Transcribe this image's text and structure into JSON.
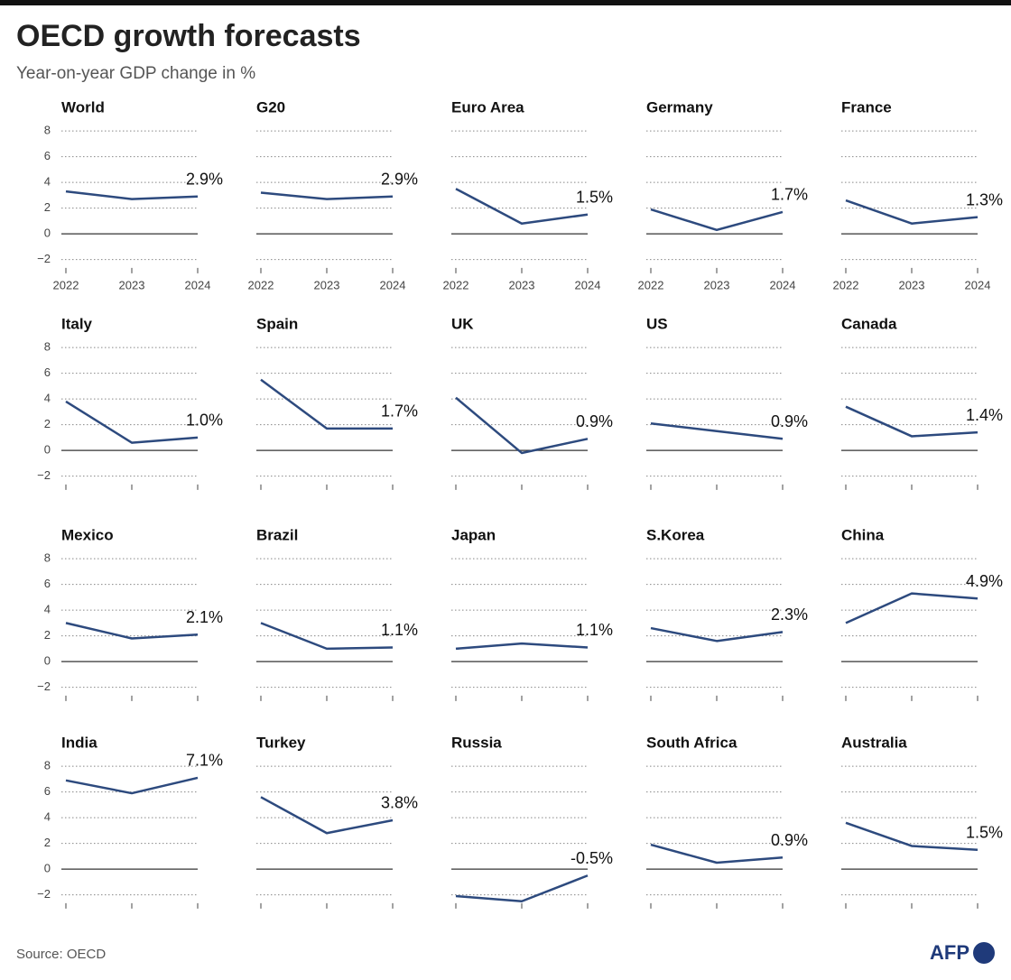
{
  "title": "OECD growth forecasts",
  "subtitle": "Year-on-year GDP change in %",
  "source": "Source: OECD",
  "logo": "AFP",
  "chart_data": [
    {
      "type": "line",
      "title": "World",
      "categories": [
        "2022",
        "2023",
        "2024"
      ],
      "values": [
        3.3,
        2.7,
        2.9
      ],
      "value_labels": [
        null,
        null,
        "2.9%"
      ],
      "color": "#2d4a7e",
      "ylim": [
        -3,
        8.5
      ],
      "yticks": [
        {
          "value": -2,
          "label": "−2"
        },
        0,
        2,
        4,
        6,
        8
      ],
      "ytick_labels": true
    },
    {
      "type": "line",
      "title": "G20",
      "categories": [
        "2022",
        "2023",
        "2024"
      ],
      "values": [
        3.2,
        2.7,
        2.9
      ],
      "value_labels": [
        null,
        null,
        "2.9%"
      ],
      "color": "#2d4a7e",
      "ylim": [
        -3,
        8.5
      ],
      "yticks": [
        -2,
        0,
        2,
        4,
        6,
        8
      ],
      "ytick_labels": false
    },
    {
      "type": "line",
      "title": "Euro Area",
      "categories": [
        "2022",
        "2023",
        "2024"
      ],
      "values": [
        3.5,
        0.8,
        1.5
      ],
      "value_labels": [
        null,
        null,
        "1.5%"
      ],
      "color": "#2d4a7e",
      "ylim": [
        -3,
        8.5
      ],
      "yticks": [
        -2,
        0,
        2,
        4,
        6,
        8
      ],
      "ytick_labels": false
    },
    {
      "type": "line",
      "title": "Germany",
      "categories": [
        "2022",
        "2023",
        "2024"
      ],
      "values": [
        1.9,
        0.3,
        1.7
      ],
      "value_labels": [
        null,
        null,
        "1.7%"
      ],
      "color": "#2d4a7e",
      "ylim": [
        -3,
        8.5
      ],
      "yticks": [
        -2,
        0,
        2,
        4,
        6,
        8
      ],
      "ytick_labels": false
    },
    {
      "type": "line",
      "title": "France",
      "categories": [
        "2022",
        "2023",
        "2024"
      ],
      "values": [
        2.6,
        0.8,
        1.3
      ],
      "value_labels": [
        null,
        null,
        "1.3%"
      ],
      "color": "#2d4a7e",
      "ylim": [
        -3,
        8.5
      ],
      "yticks": [
        -2,
        0,
        2,
        4,
        6,
        8
      ],
      "ytick_labels": false
    },
    {
      "type": "line",
      "title": "Italy",
      "categories": [
        null,
        null,
        null
      ],
      "values": [
        3.8,
        0.6,
        1.0
      ],
      "value_labels": [
        null,
        null,
        "1.0%"
      ],
      "color": "#2d4a7e",
      "ylim": [
        -3,
        8.5
      ],
      "yticks": [
        {
          "value": -2,
          "label": "−2"
        },
        0,
        2,
        4,
        6,
        8
      ],
      "ytick_labels": true
    },
    {
      "type": "line",
      "title": "Spain",
      "categories": [
        null,
        null,
        null
      ],
      "values": [
        5.5,
        1.7,
        1.7
      ],
      "value_labels": [
        null,
        null,
        "1.7%"
      ],
      "color": "#2d4a7e",
      "ylim": [
        -3,
        8.5
      ],
      "yticks": [
        -2,
        0,
        2,
        4,
        6,
        8
      ],
      "ytick_labels": false
    },
    {
      "type": "line",
      "title": "UK",
      "categories": [
        null,
        null,
        null
      ],
      "values": [
        4.1,
        -0.2,
        0.9
      ],
      "value_labels": [
        null,
        null,
        "0.9%"
      ],
      "color": "#2d4a7e",
      "ylim": [
        -3,
        8.5
      ],
      "yticks": [
        -2,
        0,
        2,
        4,
        6,
        8
      ],
      "ytick_labels": false
    },
    {
      "type": "line",
      "title": "US",
      "categories": [
        null,
        null,
        null
      ],
      "values": [
        2.1,
        1.5,
        0.9
      ],
      "value_labels": [
        null,
        null,
        "0.9%"
      ],
      "color": "#2d4a7e",
      "ylim": [
        -3,
        8.5
      ],
      "yticks": [
        -2,
        0,
        2,
        4,
        6,
        8
      ],
      "ytick_labels": false
    },
    {
      "type": "line",
      "title": "Canada",
      "categories": [
        null,
        null,
        null
      ],
      "values": [
        3.4,
        1.1,
        1.4
      ],
      "value_labels": [
        null,
        null,
        "1.4%"
      ],
      "color": "#2d4a7e",
      "ylim": [
        -3,
        8.5
      ],
      "yticks": [
        -2,
        0,
        2,
        4,
        6,
        8
      ],
      "ytick_labels": false
    },
    {
      "type": "line",
      "title": "Mexico",
      "categories": [
        null,
        null,
        null
      ],
      "values": [
        3.0,
        1.8,
        2.1
      ],
      "value_labels": [
        null,
        null,
        "2.1%"
      ],
      "color": "#2d4a7e",
      "ylim": [
        -3,
        8.5
      ],
      "yticks": [
        {
          "value": -2,
          "label": "−2"
        },
        0,
        2,
        4,
        6,
        8
      ],
      "ytick_labels": true
    },
    {
      "type": "line",
      "title": "Brazil",
      "categories": [
        null,
        null,
        null
      ],
      "values": [
        3.0,
        1.0,
        1.1
      ],
      "value_labels": [
        null,
        null,
        "1.1%"
      ],
      "color": "#2d4a7e",
      "ylim": [
        -3,
        8.5
      ],
      "yticks": [
        -2,
        0,
        2,
        4,
        6,
        8
      ],
      "ytick_labels": false
    },
    {
      "type": "line",
      "title": "Japan",
      "categories": [
        null,
        null,
        null
      ],
      "values": [
        1.0,
        1.4,
        1.1
      ],
      "value_labels": [
        null,
        null,
        "1.1%"
      ],
      "color": "#2d4a7e",
      "ylim": [
        -3,
        8.5
      ],
      "yticks": [
        -2,
        0,
        2,
        4,
        6,
        8
      ],
      "ytick_labels": false
    },
    {
      "type": "line",
      "title": "S.Korea",
      "categories": [
        null,
        null,
        null
      ],
      "values": [
        2.6,
        1.6,
        2.3
      ],
      "value_labels": [
        null,
        null,
        "2.3%"
      ],
      "color": "#2d4a7e",
      "ylim": [
        -3,
        8.5
      ],
      "yticks": [
        -2,
        0,
        2,
        4,
        6,
        8
      ],
      "ytick_labels": false
    },
    {
      "type": "line",
      "title": "China",
      "categories": [
        null,
        null,
        null
      ],
      "values": [
        3.0,
        5.3,
        4.9
      ],
      "value_labels": [
        null,
        null,
        "4.9%"
      ],
      "color": "#2d4a7e",
      "ylim": [
        -3,
        8.5
      ],
      "yticks": [
        -2,
        0,
        2,
        4,
        6,
        8
      ],
      "ytick_labels": false
    },
    {
      "type": "line",
      "title": "India",
      "categories": [
        null,
        null,
        null
      ],
      "values": [
        6.9,
        5.9,
        7.1
      ],
      "value_labels": [
        null,
        null,
        "7.1%"
      ],
      "color": "#2d4a7e",
      "ylim": [
        -3,
        8.5
      ],
      "yticks": [
        {
          "value": -2,
          "label": "−2"
        },
        0,
        2,
        4,
        6,
        8
      ],
      "ytick_labels": true
    },
    {
      "type": "line",
      "title": "Turkey",
      "categories": [
        null,
        null,
        null
      ],
      "values": [
        5.6,
        2.8,
        3.8
      ],
      "value_labels": [
        null,
        null,
        "3.8%"
      ],
      "color": "#2d4a7e",
      "ylim": [
        -3,
        8.5
      ],
      "yticks": [
        -2,
        0,
        2,
        4,
        6,
        8
      ],
      "ytick_labels": false
    },
    {
      "type": "line",
      "title": "Russia",
      "categories": [
        null,
        null,
        null
      ],
      "values": [
        -2.1,
        -2.5,
        -0.5
      ],
      "value_labels": [
        null,
        null,
        "-0.5%"
      ],
      "color": "#2d4a7e",
      "ylim": [
        -3,
        8.5
      ],
      "yticks": [
        -2,
        0,
        2,
        4,
        6,
        8
      ],
      "ytick_labels": false
    },
    {
      "type": "line",
      "title": "South Africa",
      "categories": [
        null,
        null,
        null
      ],
      "values": [
        1.9,
        0.5,
        0.9
      ],
      "value_labels": [
        null,
        null,
        "0.9%"
      ],
      "color": "#2d4a7e",
      "ylim": [
        -3,
        8.5
      ],
      "yticks": [
        -2,
        0,
        2,
        4,
        6,
        8
      ],
      "ytick_labels": false
    },
    {
      "type": "line",
      "title": "Australia",
      "categories": [
        null,
        null,
        null
      ],
      "values": [
        3.6,
        1.8,
        1.5
      ],
      "value_labels": [
        null,
        null,
        "1.5%"
      ],
      "color": "#2d4a7e",
      "ylim": [
        -3,
        8.5
      ],
      "yticks": [
        -2,
        0,
        2,
        4,
        6,
        8
      ],
      "ytick_labels": false
    }
  ]
}
